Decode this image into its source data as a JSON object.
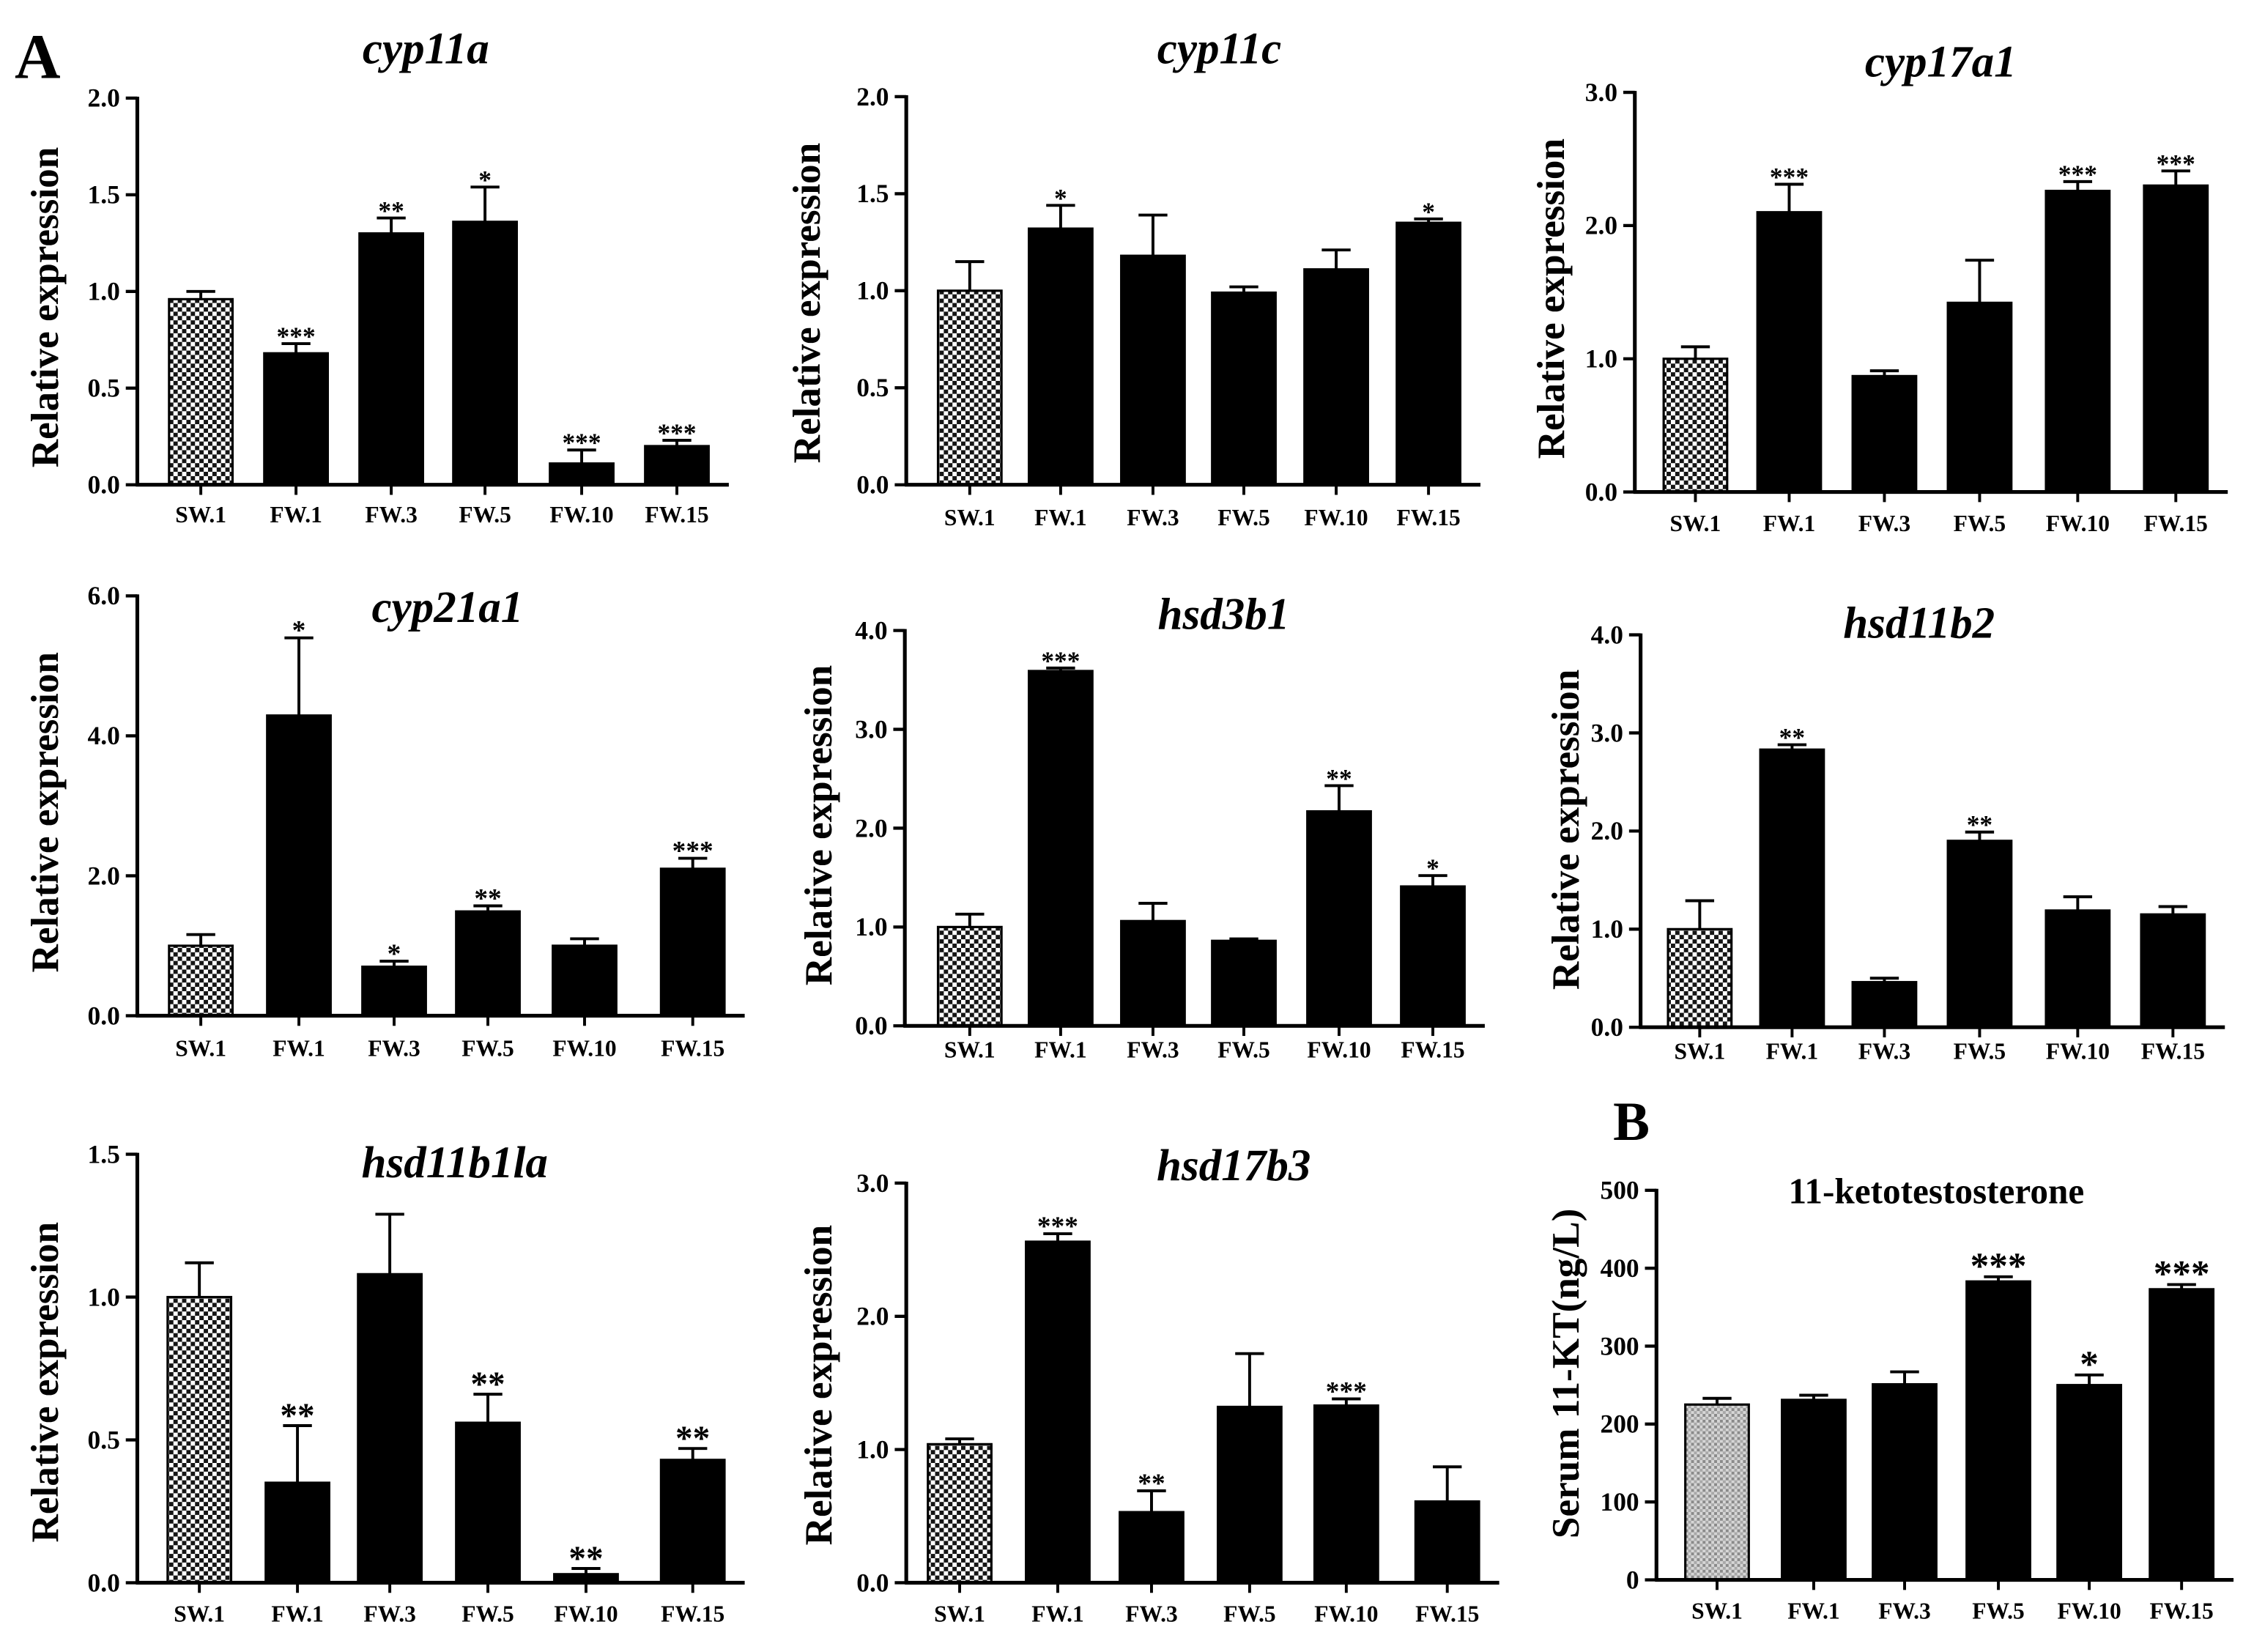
{
  "panel_labels": {
    "a": "A",
    "b": "B"
  },
  "colors": {
    "treatment": "#000000",
    "axis": "#000000",
    "control_light": "#d0d0d0"
  },
  "chart_data": [
    {
      "panel": "A",
      "type": "bar",
      "title": "cyp11a",
      "ylabel": "Relative expression",
      "categories": [
        "SW.1",
        "FW.1",
        "FW.3",
        "FW.5",
        "FW.10",
        "FW.15"
      ],
      "values": [
        0.96,
        0.68,
        1.3,
        1.36,
        0.11,
        0.2
      ],
      "errors": [
        0.04,
        0.05,
        0.08,
        0.18,
        0.07,
        0.03
      ],
      "significance": [
        "",
        "***",
        "**",
        "*",
        "***",
        "***"
      ],
      "ylim": [
        0,
        2.0
      ],
      "ytick_labels": [
        "0.0",
        "0.5",
        "1.0",
        "1.5",
        "2.0"
      ],
      "grid": false
    },
    {
      "panel": "A",
      "type": "bar",
      "title": "cyp11c",
      "ylabel": "Relative expression",
      "categories": [
        "SW.1",
        "FW.1",
        "FW.3",
        "FW.5",
        "FW.10",
        "FW.15"
      ],
      "values": [
        1.0,
        1.32,
        1.18,
        0.99,
        1.11,
        1.35
      ],
      "errors": [
        0.15,
        0.12,
        0.21,
        0.03,
        0.1,
        0.02
      ],
      "significance": [
        "",
        "*",
        "",
        "",
        "",
        "*"
      ],
      "ylim": [
        0,
        2.0
      ],
      "ytick_labels": [
        "0.0",
        "0.5",
        "1.0",
        "1.5",
        "2.0"
      ],
      "grid": false
    },
    {
      "panel": "A",
      "type": "bar",
      "title": "cyp17a1",
      "ylabel": "Relative expression",
      "categories": [
        "SW.1",
        "FW.1",
        "FW.3",
        "FW.5",
        "FW.10",
        "FW.15"
      ],
      "values": [
        1.0,
        2.1,
        0.87,
        1.42,
        2.26,
        2.3
      ],
      "errors": [
        0.09,
        0.21,
        0.04,
        0.32,
        0.07,
        0.11
      ],
      "significance": [
        "",
        "***",
        "",
        "",
        "***",
        "***"
      ],
      "ylim": [
        0,
        3.0
      ],
      "ytick_labels": [
        "0.0",
        "1.0",
        "2.0",
        "3.0"
      ],
      "grid": false
    },
    {
      "panel": "A",
      "type": "bar",
      "title": "cyp21a1",
      "ylabel": "Relative expression",
      "categories": [
        "SW.1",
        "FW.1",
        "FW.3",
        "FW.5",
        "FW.10",
        "FW.15"
      ],
      "values": [
        1.0,
        4.29,
        0.7,
        1.49,
        1.0,
        2.1
      ],
      "errors": [
        0.16,
        1.11,
        0.08,
        0.08,
        0.1,
        0.15
      ],
      "significance": [
        "",
        "*",
        "*",
        "**",
        "",
        "***"
      ],
      "ylim": [
        0,
        6.0
      ],
      "ytick_labels": [
        "0.0",
        "2.0",
        "4.0",
        "6.0"
      ],
      "grid": false
    },
    {
      "panel": "A",
      "type": "bar",
      "title": "hsd3b1",
      "ylabel": "Relative expression",
      "categories": [
        "SW.1",
        "FW.1",
        "FW.3",
        "FW.5",
        "FW.10",
        "FW.15"
      ],
      "values": [
        1.0,
        3.59,
        1.06,
        0.86,
        2.17,
        1.41
      ],
      "errors": [
        0.13,
        0.03,
        0.18,
        0.02,
        0.26,
        0.11
      ],
      "significance": [
        "",
        "***",
        "",
        "",
        "**",
        "*"
      ],
      "ylim": [
        0,
        4.0
      ],
      "ytick_labels": [
        "0.0",
        "1.0",
        "2.0",
        "3.0",
        "4.0"
      ],
      "grid": false
    },
    {
      "panel": "A",
      "type": "bar",
      "title": "hsd11b2",
      "ylabel": "Relative expression",
      "categories": [
        "SW.1",
        "FW.1",
        "FW.3",
        "FW.5",
        "FW.10",
        "FW.15"
      ],
      "values": [
        1.0,
        2.83,
        0.46,
        1.9,
        1.19,
        1.15
      ],
      "errors": [
        0.29,
        0.05,
        0.04,
        0.09,
        0.14,
        0.08
      ],
      "significance": [
        "",
        "**",
        "",
        "**",
        "",
        ""
      ],
      "ylim": [
        0,
        4.0
      ],
      "ytick_labels": [
        "0.0",
        "1.0",
        "2.0",
        "3.0",
        "4.0"
      ],
      "grid": false
    },
    {
      "panel": "A",
      "type": "bar",
      "title": "hsd11b1la",
      "ylabel": "Relative expression",
      "categories": [
        "SW.1",
        "FW.1",
        "FW.3",
        "FW.5",
        "FW.10",
        "FW.15"
      ],
      "values": [
        1.0,
        0.35,
        1.08,
        0.56,
        0.03,
        0.43
      ],
      "errors": [
        0.12,
        0.2,
        0.21,
        0.1,
        0.02,
        0.04
      ],
      "significance": [
        "",
        "**",
        "",
        "**",
        "**",
        "**"
      ],
      "ylim": [
        0,
        1.5
      ],
      "ytick_labels": [
        "0.0",
        "0.5",
        "1.0",
        "1.5"
      ],
      "grid": false
    },
    {
      "panel": "A",
      "type": "bar",
      "title": "hsd17b3",
      "ylabel": "Relative expression",
      "categories": [
        "SW.1",
        "FW.1",
        "FW.3",
        "FW.5",
        "FW.10",
        "FW.15"
      ],
      "values": [
        1.04,
        2.56,
        0.53,
        1.32,
        1.33,
        0.61
      ],
      "errors": [
        0.04,
        0.06,
        0.16,
        0.4,
        0.05,
        0.26
      ],
      "significance": [
        "",
        "***",
        "**",
        "",
        "***",
        ""
      ],
      "ylim": [
        0,
        3.0
      ],
      "ytick_labels": [
        "0.0",
        "1.0",
        "2.0",
        "3.0"
      ],
      "grid": false
    },
    {
      "panel": "B",
      "type": "bar",
      "title": "11-ketotestosterone",
      "ylabel": "Serum 11-KT(ng/L)",
      "categories": [
        "SW.1",
        "FW.1",
        "FW.3",
        "FW.5",
        "FW.10",
        "FW.15"
      ],
      "values": [
        225,
        231,
        251,
        383,
        250,
        373
      ],
      "errors": [
        8,
        6,
        16,
        6,
        13,
        6
      ],
      "significance": [
        "",
        "",
        "",
        "***",
        "*",
        "***"
      ],
      "ylim": [
        0,
        500
      ],
      "ytick_labels": [
        "0",
        "100",
        "200",
        "300",
        "400",
        "500"
      ],
      "grid": false
    }
  ]
}
